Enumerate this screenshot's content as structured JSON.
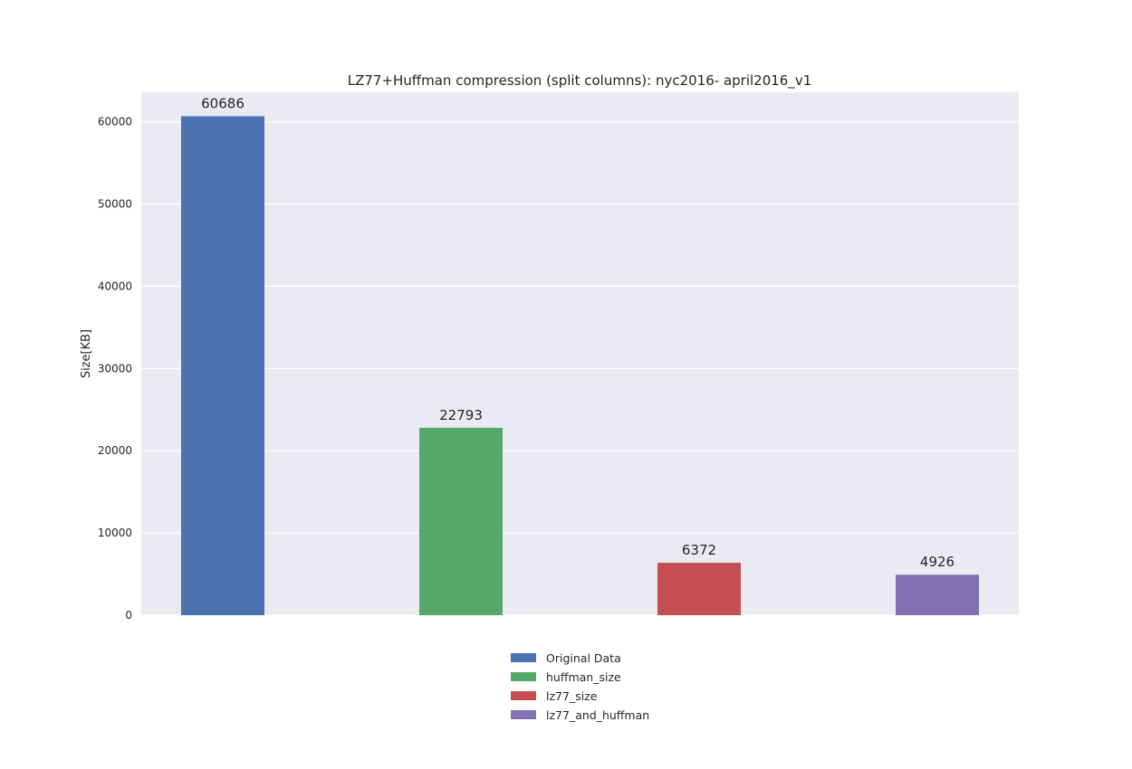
{
  "chart_data": {
    "type": "bar",
    "title": "LZ77+Huffman compression (split columns): nyc2016- april2016_v1",
    "xlabel": "",
    "ylabel": "Size[KB]",
    "ylim": [
      0,
      63600
    ],
    "yticks": [
      0,
      10000,
      20000,
      30000,
      40000,
      50000,
      60000
    ],
    "ytick_labels": [
      "0",
      "10000",
      "20000",
      "30000",
      "40000",
      "50000",
      "60000"
    ],
    "grid": true,
    "legend_position": "bottom-center",
    "series": [
      {
        "name": "Original Data",
        "value": 60686,
        "label": "60686",
        "color": "#4C72B0"
      },
      {
        "name": "huffman_size",
        "value": 22793,
        "label": "22793",
        "color": "#55A868"
      },
      {
        "name": "lz77_size",
        "value": 6372,
        "label": "6372",
        "color": "#C44E52"
      },
      {
        "name": "lz77_and_huffman",
        "value": 4926,
        "label": "4926",
        "color": "#8172B2"
      }
    ],
    "plot_background": "#EAEAF2",
    "grid_color": "#FFFFFF"
  }
}
